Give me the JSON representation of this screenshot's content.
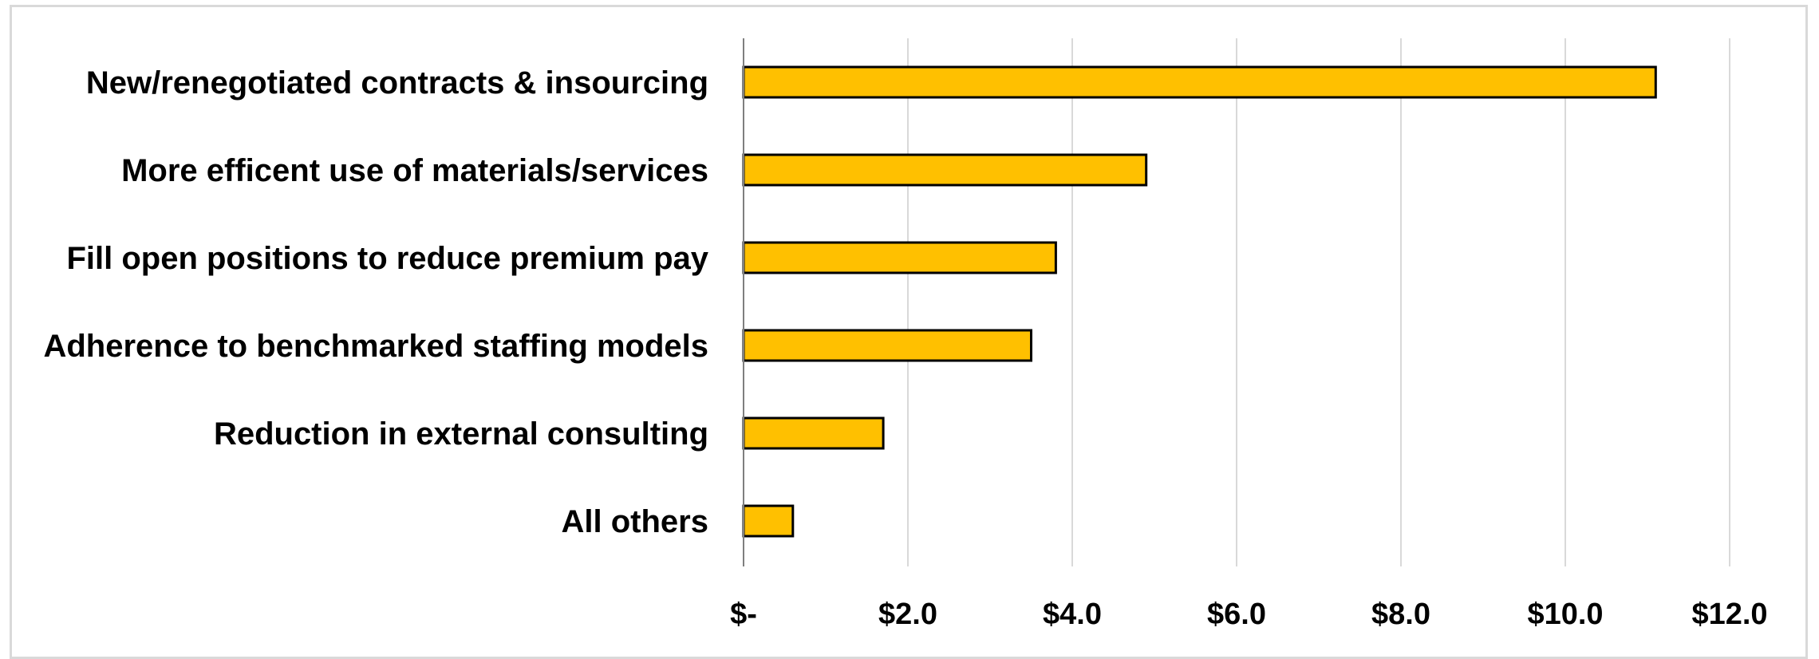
{
  "chart_data": {
    "type": "bar",
    "orientation": "horizontal",
    "categories": [
      "New/renegotiated contracts & insourcing",
      "More efficent use of materials/services",
      "Fill open positions to reduce premium pay",
      "Adherence to benchmarked staffing models",
      "Reduction in external consulting",
      "All others"
    ],
    "values": [
      11.1,
      4.9,
      3.8,
      3.5,
      1.7,
      0.6
    ],
    "xlim": [
      0,
      12
    ],
    "x_ticks": [
      0,
      2,
      4,
      6,
      8,
      10,
      12
    ],
    "x_tick_labels": [
      "$-",
      "$2.0",
      "$4.0",
      "$6.0",
      "$8.0",
      "$10.0",
      "$12.0"
    ],
    "title": "",
    "xlabel": "",
    "ylabel": "",
    "grid": "vertical",
    "legend": "none",
    "colors": {
      "bar_fill": "#FFC000",
      "bar_stroke": "#000000",
      "grid": "#d9d9d9",
      "axis": "#7f7f7f",
      "frame": "#d9d9d9"
    }
  }
}
